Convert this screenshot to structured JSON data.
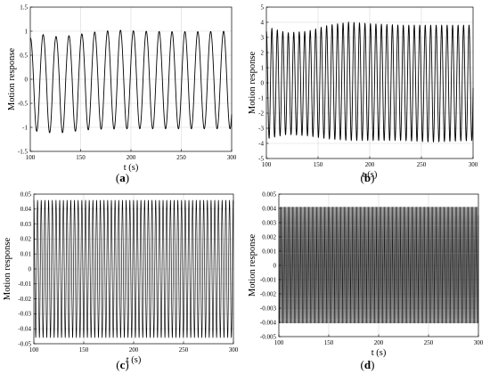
{
  "chart_data": [
    {
      "panel": "a",
      "caption": "a",
      "type": "line",
      "xlabel": "t (s)",
      "ylabel": "Motion response",
      "xlim": [
        100,
        300
      ],
      "ylim": [
        -1.5,
        1.5
      ],
      "xticks": [
        100,
        150,
        200,
        250,
        300
      ],
      "yticks": [
        -1.5,
        -1,
        -0.5,
        0,
        0.5,
        1,
        1.5
      ],
      "ytick_labels": [
        "-1.5",
        "-1",
        "-0.5",
        "0",
        "0.5",
        "1",
        "1.5"
      ],
      "grid": true,
      "series": [
        {
          "waveform": "sinusoid",
          "period_s": 12.8,
          "peak_envelope": {
            "t": [
              100,
              103,
              110,
              120,
              130,
              150,
              170,
              190,
              210,
              240,
              270,
              300
            ],
            "amp": [
              0.85,
              0.98,
              0.94,
              0.9,
              0.88,
              0.94,
              1.0,
              1.02,
              1.0,
              0.99,
              0.99,
              1.0
            ]
          },
          "trough_envelope": {
            "t": [
              100,
              110,
              125,
              140,
              150,
              170,
              200,
              250,
              300
            ],
            "amp": [
              -1.05,
              -1.1,
              -1.12,
              -1.1,
              -1.06,
              -1.04,
              -1.03,
              -1.03,
              -1.03
            ]
          }
        }
      ]
    },
    {
      "panel": "b",
      "caption": "b",
      "type": "line",
      "xlabel": "t (s)",
      "ylabel": "Motion response",
      "xlim": [
        100,
        300
      ],
      "ylim": [
        -5,
        5
      ],
      "xticks": [
        100,
        150,
        200,
        250,
        300
      ],
      "yticks": [
        -5,
        -4,
        -3,
        -2,
        -1,
        0,
        1,
        2,
        3,
        4,
        5
      ],
      "ytick_labels": [
        "-5",
        "-4",
        "-3",
        "-2",
        "-1",
        "0",
        "1",
        "2",
        "3",
        "4",
        "5"
      ],
      "grid": true,
      "series": [
        {
          "waveform": "sinusoid",
          "period_s": 5.3,
          "peak_envelope": {
            "t": [
              100,
              105,
              120,
              140,
              160,
              180,
              200,
              230,
              260,
              300
            ],
            "amp": [
              3.4,
              3.6,
              3.3,
              3.4,
              3.8,
              4.0,
              3.9,
              3.8,
              3.8,
              3.8
            ]
          },
          "trough_envelope": {
            "t": [
              100,
              120,
              140,
              160,
              180,
              200,
              230,
              260,
              300
            ],
            "amp": [
              -3.7,
              -3.4,
              -3.5,
              -3.7,
              -3.8,
              -3.8,
              -3.8,
              -3.9,
              -3.8
            ]
          }
        }
      ]
    },
    {
      "panel": "c",
      "caption": "c",
      "type": "line",
      "xlabel": "t (s)",
      "ylabel": "Motion response",
      "xlim": [
        100,
        300
      ],
      "ylim": [
        -0.05,
        0.05
      ],
      "xticks": [
        100,
        150,
        200,
        250,
        300
      ],
      "yticks": [
        -0.05,
        -0.04,
        -0.03,
        -0.02,
        -0.01,
        0,
        0.01,
        0.02,
        0.03,
        0.04,
        0.05
      ],
      "ytick_labels": [
        "-0.05",
        "-0.04",
        "-0.03",
        "-0.02",
        "-0.01",
        "0",
        "0.01",
        "0.02",
        "0.03",
        "0.04",
        "0.05"
      ],
      "grid": true,
      "series": [
        {
          "waveform": "sinusoid",
          "period_s": 3.7,
          "peak_envelope": {
            "t": [
              100,
              300
            ],
            "amp": [
              0.046,
              0.046
            ]
          },
          "trough_envelope": {
            "t": [
              100,
              300
            ],
            "amp": [
              -0.046,
              -0.046
            ]
          }
        }
      ]
    },
    {
      "panel": "d",
      "caption": "d",
      "type": "line",
      "xlabel": "t (s)",
      "ylabel": "Motion response",
      "xlim": [
        100,
        300
      ],
      "ylim": [
        -0.005,
        0.005
      ],
      "xticks": [
        100,
        150,
        200,
        250,
        300
      ],
      "yticks": [
        -0.005,
        -0.004,
        -0.003,
        -0.002,
        -0.001,
        0,
        0.001,
        0.002,
        0.003,
        0.004,
        0.005
      ],
      "ytick_labels": [
        "-0.005",
        "-0.004",
        "-0.003",
        "-0.002",
        "-0.001",
        "0",
        "0.001",
        "0.002",
        "0.003",
        "0.004",
        "0.005"
      ],
      "grid": true,
      "series": [
        {
          "waveform": "sinusoid",
          "period_s": 1.15,
          "peak_envelope": {
            "t": [
              100,
              300
            ],
            "amp": [
              0.0041,
              0.0041
            ]
          },
          "trough_envelope": {
            "t": [
              100,
              300
            ],
            "amp": [
              -0.0041,
              -0.0041
            ]
          }
        }
      ]
    }
  ]
}
